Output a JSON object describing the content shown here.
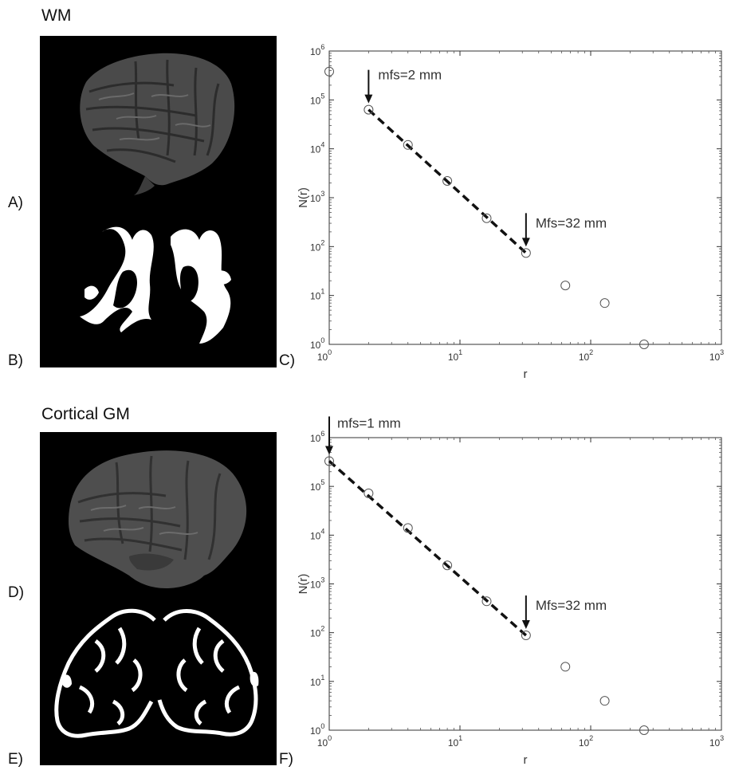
{
  "top": {
    "title": "WM",
    "labels": {
      "a": "A)",
      "b": "B)",
      "c": "C)"
    }
  },
  "bottom": {
    "title": "Cortical GM",
    "labels": {
      "d": "D)",
      "e": "E)",
      "f": "F)"
    }
  },
  "chart_data": [
    {
      "type": "scatter",
      "panel": "C",
      "xlabel": "r",
      "ylabel": "N(r)",
      "xscale": "log",
      "yscale": "log",
      "xlim": [
        1,
        1000
      ],
      "ylim": [
        1,
        1000000
      ],
      "x_ticks": [
        {
          "base": "10",
          "exp": "0"
        },
        {
          "base": "10",
          "exp": "1"
        },
        {
          "base": "10",
          "exp": "2"
        },
        {
          "base": "10",
          "exp": "3"
        }
      ],
      "y_ticks": [
        {
          "base": "10",
          "exp": "0"
        },
        {
          "base": "10",
          "exp": "1"
        },
        {
          "base": "10",
          "exp": "2"
        },
        {
          "base": "10",
          "exp": "3"
        },
        {
          "base": "10",
          "exp": "4"
        },
        {
          "base": "10",
          "exp": "5"
        },
        {
          "base": "10",
          "exp": "6"
        }
      ],
      "grid": false,
      "points": [
        {
          "x": 1,
          "y": 380000
        },
        {
          "x": 2,
          "y": 63000
        },
        {
          "x": 4,
          "y": 12000
        },
        {
          "x": 8,
          "y": 2200
        },
        {
          "x": 16,
          "y": 380
        },
        {
          "x": 32,
          "y": 74
        },
        {
          "x": 64,
          "y": 16
        },
        {
          "x": 128,
          "y": 7
        },
        {
          "x": 256,
          "y": 1
        }
      ],
      "fit_line": {
        "x": [
          2,
          32
        ],
        "y": [
          63000,
          74
        ],
        "style": "dashed"
      },
      "annotations": [
        {
          "text": "mfs=2 mm",
          "x": 2,
          "y": 63000
        },
        {
          "text": "Mfs=32 mm",
          "x": 32,
          "y": 74
        }
      ]
    },
    {
      "type": "scatter",
      "panel": "F",
      "xlabel": "r",
      "ylabel": "N(r)",
      "xscale": "log",
      "yscale": "log",
      "xlim": [
        1,
        1000
      ],
      "ylim": [
        1,
        1000000
      ],
      "x_ticks": [
        {
          "base": "10",
          "exp": "0"
        },
        {
          "base": "10",
          "exp": "1"
        },
        {
          "base": "10",
          "exp": "2"
        },
        {
          "base": "10",
          "exp": "3"
        }
      ],
      "y_ticks": [
        {
          "base": "10",
          "exp": "0"
        },
        {
          "base": "10",
          "exp": "1"
        },
        {
          "base": "10",
          "exp": "2"
        },
        {
          "base": "10",
          "exp": "3"
        },
        {
          "base": "10",
          "exp": "4"
        },
        {
          "base": "10",
          "exp": "5"
        },
        {
          "base": "10",
          "exp": "6"
        }
      ],
      "grid": false,
      "points": [
        {
          "x": 1,
          "y": 330000
        },
        {
          "x": 2,
          "y": 72000
        },
        {
          "x": 4,
          "y": 14000
        },
        {
          "x": 8,
          "y": 2400
        },
        {
          "x": 16,
          "y": 440
        },
        {
          "x": 32,
          "y": 88
        },
        {
          "x": 64,
          "y": 20
        },
        {
          "x": 128,
          "y": 4
        },
        {
          "x": 256,
          "y": 1
        }
      ],
      "fit_line": {
        "x": [
          1,
          32
        ],
        "y": [
          330000,
          88
        ],
        "style": "dashed"
      },
      "annotations": [
        {
          "text": "mfs=1 mm",
          "x": 1,
          "y": 330000
        },
        {
          "text": "Mfs=32 mm",
          "x": 32,
          "y": 88
        }
      ]
    }
  ]
}
